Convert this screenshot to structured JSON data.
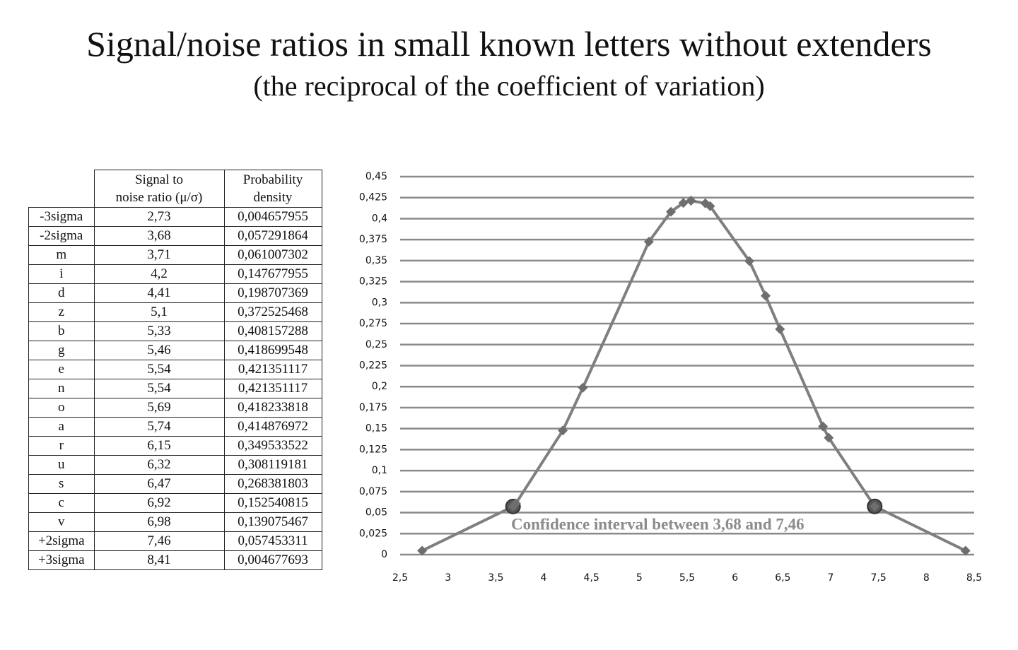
{
  "title": "Signal/noise ratios in small known letters without extenders",
  "subtitle": "(the reciprocal of the coefficient of variation)",
  "table": {
    "header": [
      "Signal to\nnoise ratio (μ/σ)",
      "Probability\ndensity"
    ],
    "rows": [
      [
        "-3sigma",
        "2,73",
        "0,004657955"
      ],
      [
        "-2sigma",
        "3,68",
        "0,057291864"
      ],
      [
        "m",
        "3,71",
        "0,061007302"
      ],
      [
        "i",
        "4,2",
        "0,147677955"
      ],
      [
        "d",
        "4,41",
        "0,198707369"
      ],
      [
        "z",
        "5,1",
        "0,372525468"
      ],
      [
        "b",
        "5,33",
        "0,408157288"
      ],
      [
        "g",
        "5,46",
        "0,418699548"
      ],
      [
        "e",
        "5,54",
        "0,421351117"
      ],
      [
        "n",
        "5,54",
        "0,421351117"
      ],
      [
        "o",
        "5,69",
        "0,418233818"
      ],
      [
        "a",
        "5,74",
        "0,414876972"
      ],
      [
        "r",
        "6,15",
        "0,349533522"
      ],
      [
        "u",
        "6,32",
        "0,308119181"
      ],
      [
        "s",
        "6,47",
        "0,268381803"
      ],
      [
        "c",
        "6,92",
        "0,152540815"
      ],
      [
        "v",
        "6,98",
        "0,139075467"
      ],
      [
        "+2sigma",
        "7,46",
        "0,057453311"
      ],
      [
        "+3sigma",
        "8,41",
        "0,004677693"
      ]
    ]
  },
  "chart_data": {
    "type": "line",
    "x": [
      2.73,
      3.68,
      3.71,
      4.2,
      4.41,
      5.1,
      5.33,
      5.46,
      5.54,
      5.54,
      5.69,
      5.74,
      6.15,
      6.32,
      6.47,
      6.92,
      6.98,
      7.46,
      8.41
    ],
    "values": [
      0.004657955,
      0.057291864,
      0.061007302,
      0.147677955,
      0.198707369,
      0.372525468,
      0.408157288,
      0.418699548,
      0.421351117,
      0.421351117,
      0.418233818,
      0.414876972,
      0.349533522,
      0.308119181,
      0.268381803,
      0.152540815,
      0.139075467,
      0.057453311,
      0.004677693
    ],
    "color": "#7f7f7f",
    "highlighted": [
      1,
      17
    ],
    "annotation": "Confidence interval between 3,68 and 7,46",
    "xlim": [
      2.5,
      8.5
    ],
    "xticks": [
      {
        "value": 2.5,
        "label": "2,5"
      },
      3,
      {
        "value": 3.5,
        "label": "3,5"
      },
      4,
      {
        "value": 4.5,
        "label": "4,5"
      },
      5,
      {
        "value": 5.5,
        "label": "5,5"
      },
      6,
      {
        "value": 6.5,
        "label": "6,5"
      },
      7,
      {
        "value": 7.5,
        "label": "7,5"
      },
      8,
      {
        "value": 8.5,
        "label": "8,5"
      }
    ],
    "ylim": [
      0,
      0.45
    ],
    "yticks": [
      0,
      {
        "value": 0.025,
        "label": "0,025"
      },
      {
        "value": 0.05,
        "label": "0,05"
      },
      {
        "value": 0.075,
        "label": "0,075"
      },
      {
        "value": 0.1,
        "label": "0,1"
      },
      {
        "value": 0.125,
        "label": "0,125"
      },
      {
        "value": 0.15,
        "label": "0,15"
      },
      {
        "value": 0.175,
        "label": "0,175"
      },
      {
        "value": 0.2,
        "label": "0,2"
      },
      {
        "value": 0.225,
        "label": "0,225"
      },
      {
        "value": 0.25,
        "label": "0,25"
      },
      {
        "value": 0.275,
        "label": "0,275"
      },
      {
        "value": 0.3,
        "label": "0,3"
      },
      {
        "value": 0.325,
        "label": "0,325"
      },
      {
        "value": 0.35,
        "label": "0,35"
      },
      {
        "value": 0.375,
        "label": "0,375"
      },
      {
        "value": 0.4,
        "label": "0,4"
      },
      {
        "value": 0.425,
        "label": "0,425"
      },
      {
        "value": 0.45,
        "label": "0,45"
      }
    ],
    "grid": true
  }
}
